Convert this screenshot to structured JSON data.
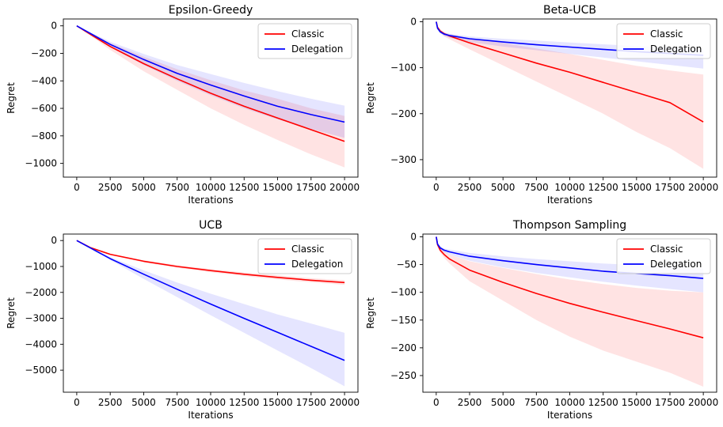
{
  "chart_data": [
    {
      "type": "line",
      "title": "Epsilon-Greedy",
      "xlabel": "Iterations",
      "ylabel": "Regret",
      "xlim": [
        -1000,
        21000
      ],
      "ylim": [
        -1100,
        50
      ],
      "xticks": [
        0,
        2500,
        5000,
        7500,
        10000,
        12500,
        15000,
        17500,
        20000
      ],
      "yticks": [
        0,
        -200,
        -400,
        -600,
        -800,
        -1000
      ],
      "legend": "top-right",
      "series": [
        {
          "name": "Classic",
          "color": "#ff0000",
          "x": [
            0,
            2500,
            5000,
            7500,
            10000,
            12500,
            15000,
            17500,
            20000
          ],
          "y": [
            0,
            -150,
            -275,
            -385,
            -490,
            -585,
            -670,
            -755,
            -840
          ],
          "lower": [
            0,
            -175,
            -330,
            -465,
            -600,
            -720,
            -830,
            -935,
            -1030
          ],
          "upper": [
            0,
            -125,
            -225,
            -315,
            -395,
            -470,
            -530,
            -600,
            -655
          ]
        },
        {
          "name": "Delegation",
          "color": "#0000ff",
          "x": [
            0,
            2500,
            5000,
            7500,
            10000,
            12500,
            15000,
            17500,
            20000
          ],
          "y": [
            0,
            -135,
            -245,
            -345,
            -430,
            -510,
            -585,
            -645,
            -700
          ],
          "lower": [
            0,
            -155,
            -285,
            -400,
            -505,
            -600,
            -680,
            -750,
            -815
          ],
          "upper": [
            0,
            -115,
            -205,
            -285,
            -350,
            -415,
            -475,
            -530,
            -580
          ]
        }
      ]
    },
    {
      "type": "line",
      "title": "Beta-UCB",
      "xlabel": "Iterations",
      "ylabel": "Regret",
      "xlim": [
        -1000,
        21000
      ],
      "ylim": [
        -338,
        6
      ],
      "xticks": [
        0,
        2500,
        5000,
        7500,
        10000,
        12500,
        15000,
        17500,
        20000
      ],
      "yticks": [
        0,
        -100,
        -200,
        -300
      ],
      "legend": "top-right",
      "series": [
        {
          "name": "Classic",
          "color": "#ff0000",
          "x": [
            0,
            100,
            300,
            600,
            1000,
            2500,
            5000,
            7500,
            10000,
            12500,
            15000,
            17500,
            20000
          ],
          "y": [
            0,
            -12,
            -20,
            -26,
            -31,
            -46,
            -68,
            -90,
            -110,
            -132,
            -154,
            -176,
            -218
          ],
          "lower": [
            0,
            -14,
            -24,
            -32,
            -38,
            -60,
            -95,
            -130,
            -165,
            -200,
            -240,
            -275,
            -320
          ],
          "upper": [
            0,
            -11,
            -18,
            -23,
            -27,
            -36,
            -46,
            -58,
            -70,
            -83,
            -96,
            -106,
            -115
          ]
        },
        {
          "name": "Delegation",
          "color": "#0000ff",
          "x": [
            0,
            100,
            300,
            600,
            1000,
            2500,
            5000,
            7500,
            10000,
            12500,
            15000,
            17500,
            20000
          ],
          "y": [
            0,
            -14,
            -22,
            -27,
            -30,
            -37,
            -44,
            -50,
            -55,
            -60,
            -65,
            -69,
            -73
          ],
          "lower": [
            0,
            -16,
            -25,
            -31,
            -35,
            -44,
            -54,
            -62,
            -70,
            -78,
            -86,
            -94,
            -102
          ],
          "upper": [
            0,
            -12,
            -19,
            -24,
            -26,
            -32,
            -37,
            -41,
            -45,
            -49,
            -53,
            -56,
            -59
          ]
        }
      ]
    },
    {
      "type": "line",
      "title": "UCB",
      "xlabel": "Iterations",
      "ylabel": "Regret",
      "xlim": [
        -1000,
        21000
      ],
      "ylim": [
        -5850,
        250
      ],
      "xticks": [
        0,
        2500,
        5000,
        7500,
        10000,
        12500,
        15000,
        17500,
        20000
      ],
      "yticks": [
        0,
        -1000,
        -2000,
        -3000,
        -4000,
        -5000
      ],
      "legend": "top-right",
      "series": [
        {
          "name": "Classic",
          "color": "#ff0000",
          "x": [
            0,
            1000,
            2500,
            5000,
            7500,
            10000,
            12500,
            15000,
            17500,
            20000
          ],
          "y": [
            0,
            -270,
            -530,
            -800,
            -1000,
            -1160,
            -1300,
            -1420,
            -1530,
            -1620
          ],
          "lower": [
            0,
            -280,
            -555,
            -840,
            -1050,
            -1220,
            -1370,
            -1500,
            -1610,
            -1710
          ],
          "upper": [
            0,
            -260,
            -505,
            -760,
            -950,
            -1100,
            -1230,
            -1340,
            -1450,
            -1530
          ]
        },
        {
          "name": "Delegation",
          "color": "#0000ff",
          "x": [
            0,
            2500,
            5000,
            7500,
            10000,
            12500,
            15000,
            17500,
            20000
          ],
          "y": [
            0,
            -700,
            -1300,
            -1880,
            -2450,
            -3000,
            -3540,
            -4080,
            -4620
          ],
          "lower": [
            0,
            -750,
            -1480,
            -2180,
            -2880,
            -3560,
            -4240,
            -4920,
            -5620
          ],
          "upper": [
            0,
            -640,
            -1150,
            -1620,
            -2050,
            -2450,
            -2850,
            -3200,
            -3560
          ]
        }
      ]
    },
    {
      "type": "line",
      "title": "Thompson Sampling",
      "xlabel": "Iterations",
      "ylabel": "Regret",
      "xlim": [
        -1000,
        21000
      ],
      "ylim": [
        -280,
        5
      ],
      "xticks": [
        0,
        2500,
        5000,
        7500,
        10000,
        12500,
        15000,
        17500,
        20000
      ],
      "yticks": [
        0,
        -50,
        -100,
        -150,
        -200,
        -250
      ],
      "legend": "top-right",
      "series": [
        {
          "name": "Classic",
          "color": "#ff0000",
          "x": [
            0,
            100,
            300,
            600,
            1000,
            2500,
            5000,
            7500,
            10000,
            12500,
            15000,
            17500,
            20000
          ],
          "y": [
            0,
            -14,
            -24,
            -32,
            -40,
            -60,
            -82,
            -102,
            -120,
            -136,
            -151,
            -166,
            -182
          ],
          "lower": [
            0,
            -16,
            -28,
            -38,
            -48,
            -80,
            -115,
            -150,
            -180,
            -205,
            -225,
            -245,
            -270
          ],
          "upper": [
            0,
            -12,
            -20,
            -26,
            -32,
            -44,
            -56,
            -67,
            -77,
            -85,
            -92,
            -97,
            -100
          ]
        },
        {
          "name": "Delegation",
          "color": "#0000ff",
          "x": [
            0,
            100,
            300,
            600,
            1000,
            2500,
            5000,
            7500,
            10000,
            12500,
            15000,
            17500,
            20000
          ],
          "y": [
            0,
            -13,
            -20,
            -24,
            -27,
            -35,
            -43,
            -50,
            -56,
            -62,
            -66,
            -70,
            -75
          ],
          "lower": [
            0,
            -15,
            -23,
            -28,
            -32,
            -43,
            -55,
            -65,
            -73,
            -81,
            -88,
            -94,
            -100
          ],
          "upper": [
            0,
            -11,
            -17,
            -21,
            -23,
            -29,
            -35,
            -40,
            -44,
            -48,
            -51,
            -54,
            -57
          ]
        }
      ]
    }
  ]
}
